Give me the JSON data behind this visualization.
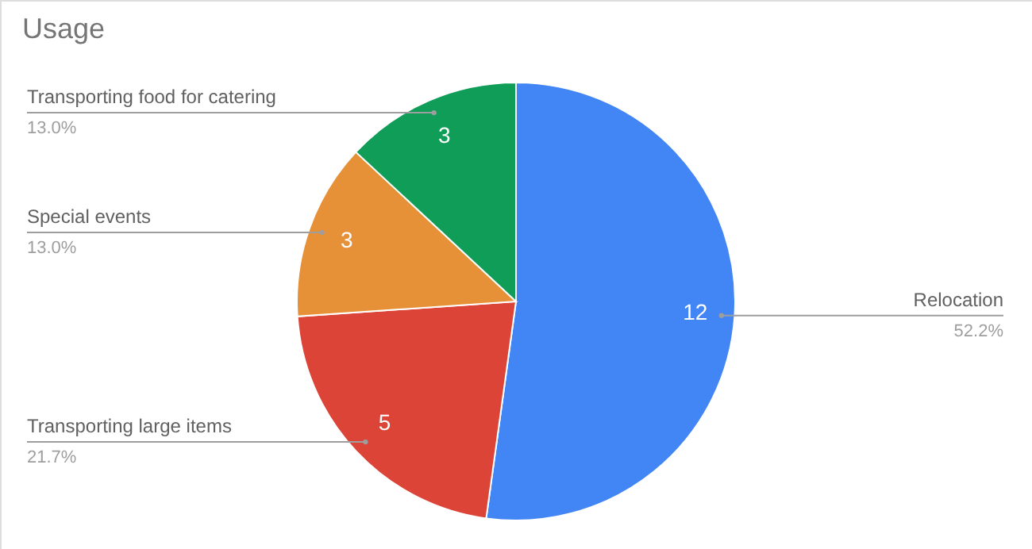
{
  "chart_data": {
    "type": "pie",
    "title": "Usage",
    "categories": [
      "Relocation",
      "Transporting large items",
      "Special events",
      "Transporting food for catering"
    ],
    "values": [
      12,
      5,
      3,
      3
    ],
    "colors": [
      "#4285f4",
      "#db4437",
      "#e69138",
      "#0f9d58"
    ],
    "value_labels": [
      "12",
      "5",
      "3",
      "3"
    ],
    "annotations": [
      "52.2%",
      "21.7%",
      "13.0%",
      "13.0%"
    ]
  }
}
